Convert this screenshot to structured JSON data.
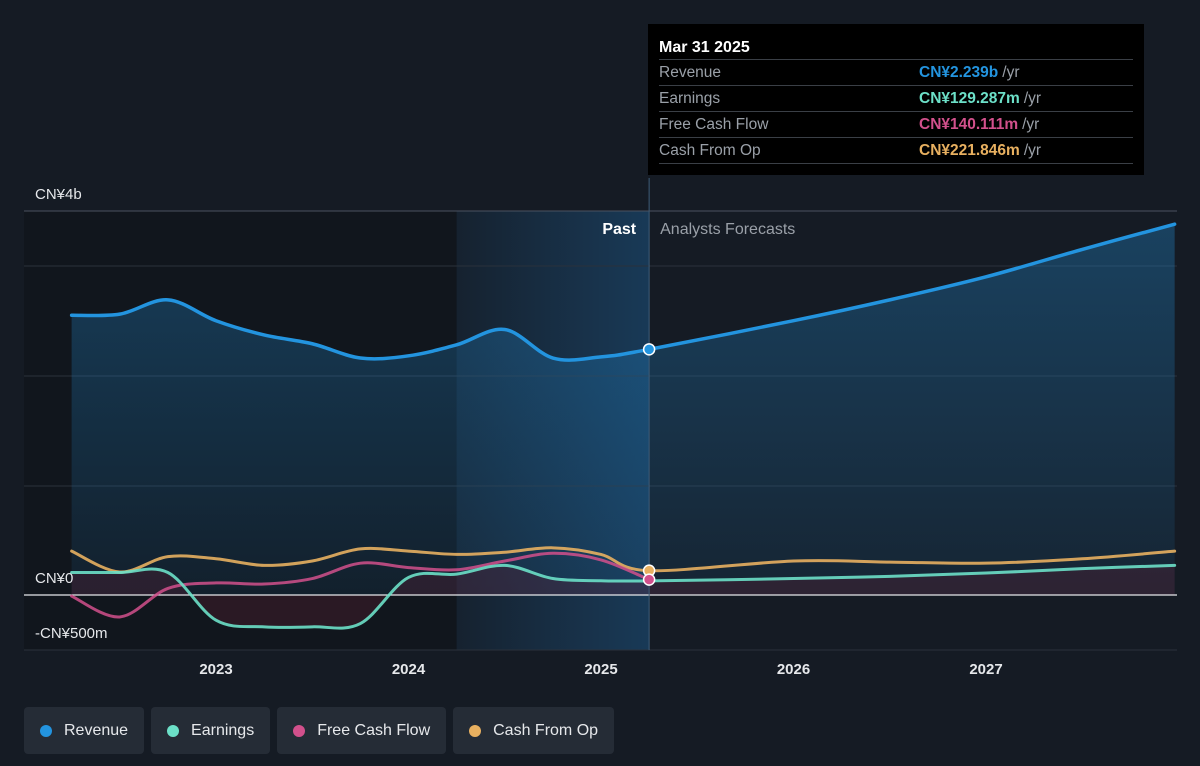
{
  "colors": {
    "background": "#151b24",
    "revenue": "#2394df",
    "earnings": "#6ce0c8",
    "free_cash_flow": "#d2508c",
    "cash_from_op": "#e8b060"
  },
  "tooltip": {
    "date": "Mar 31 2025",
    "rows": [
      {
        "label": "Revenue",
        "value": "CN¥2.239b",
        "unit": "/yr"
      },
      {
        "label": "Earnings",
        "value": "CN¥129.287m",
        "unit": "/yr"
      },
      {
        "label": "Free Cash Flow",
        "value": "CN¥140.111m",
        "unit": "/yr"
      },
      {
        "label": "Cash From Op",
        "value": "CN¥221.846m",
        "unit": "/yr"
      }
    ]
  },
  "legend": [
    {
      "label": "Revenue",
      "color": "#2394df"
    },
    {
      "label": "Earnings",
      "color": "#6ce0c8"
    },
    {
      "label": "Free Cash Flow",
      "color": "#d2508c"
    },
    {
      "label": "Cash From Op",
      "color": "#e8b060"
    }
  ],
  "chart_data": {
    "type": "line",
    "y_tick_labels": [
      "CN¥4b",
      "CN¥0",
      "-CN¥500m"
    ],
    "x_tick_labels": [
      "2023",
      "2024",
      "2025",
      "2026",
      "2027"
    ],
    "past_label": "Past",
    "forecast_label": "Analysts Forecasts",
    "ylim": [
      -500,
      3500
    ],
    "grid": true,
    "highlight_date": 2025.25,
    "series": [
      {
        "name": "Revenue",
        "color": "#2394df",
        "x": [
          2022.25,
          2022.5,
          2022.75,
          2023.0,
          2023.25,
          2023.5,
          2023.75,
          2024.0,
          2024.25,
          2024.5,
          2024.75,
          2025.0,
          2025.25,
          2026.0,
          2026.5,
          2027.0,
          2027.5,
          2027.98
        ],
        "values": [
          2550,
          2560,
          2690,
          2500,
          2370,
          2290,
          2160,
          2180,
          2280,
          2420,
          2160,
          2170,
          2239,
          2500,
          2690,
          2900,
          3150,
          3380
        ]
      },
      {
        "name": "Earnings",
        "color": "#6ce0c8",
        "x": [
          2022.25,
          2022.5,
          2022.75,
          2023.0,
          2023.25,
          2023.5,
          2023.75,
          2024.0,
          2024.25,
          2024.5,
          2024.75,
          2025.0,
          2025.25,
          2026.0,
          2026.5,
          2027.0,
          2027.5,
          2027.98
        ],
        "values": [
          205,
          205,
          205,
          -230,
          -290,
          -290,
          -260,
          160,
          190,
          270,
          150,
          130,
          129,
          150,
          170,
          200,
          240,
          270
        ]
      },
      {
        "name": "Free Cash Flow",
        "color": "#d2508c",
        "x": [
          2022.25,
          2022.5,
          2022.75,
          2023.0,
          2023.25,
          2023.5,
          2023.75,
          2024.0,
          2024.25,
          2024.5,
          2024.75,
          2025.0,
          2025.25
        ],
        "values": [
          -10,
          -200,
          60,
          110,
          100,
          150,
          290,
          250,
          230,
          310,
          380,
          320,
          140
        ]
      },
      {
        "name": "Cash From Op",
        "color": "#e8b060",
        "x": [
          2022.25,
          2022.5,
          2022.75,
          2023.0,
          2023.25,
          2023.5,
          2023.75,
          2024.0,
          2024.25,
          2024.5,
          2024.75,
          2025.0,
          2025.25,
          2026.0,
          2026.5,
          2027.0,
          2027.5,
          2027.98
        ],
        "values": [
          400,
          210,
          350,
          330,
          270,
          310,
          420,
          400,
          370,
          390,
          430,
          370,
          222,
          310,
          300,
          290,
          330,
          400
        ]
      }
    ]
  }
}
